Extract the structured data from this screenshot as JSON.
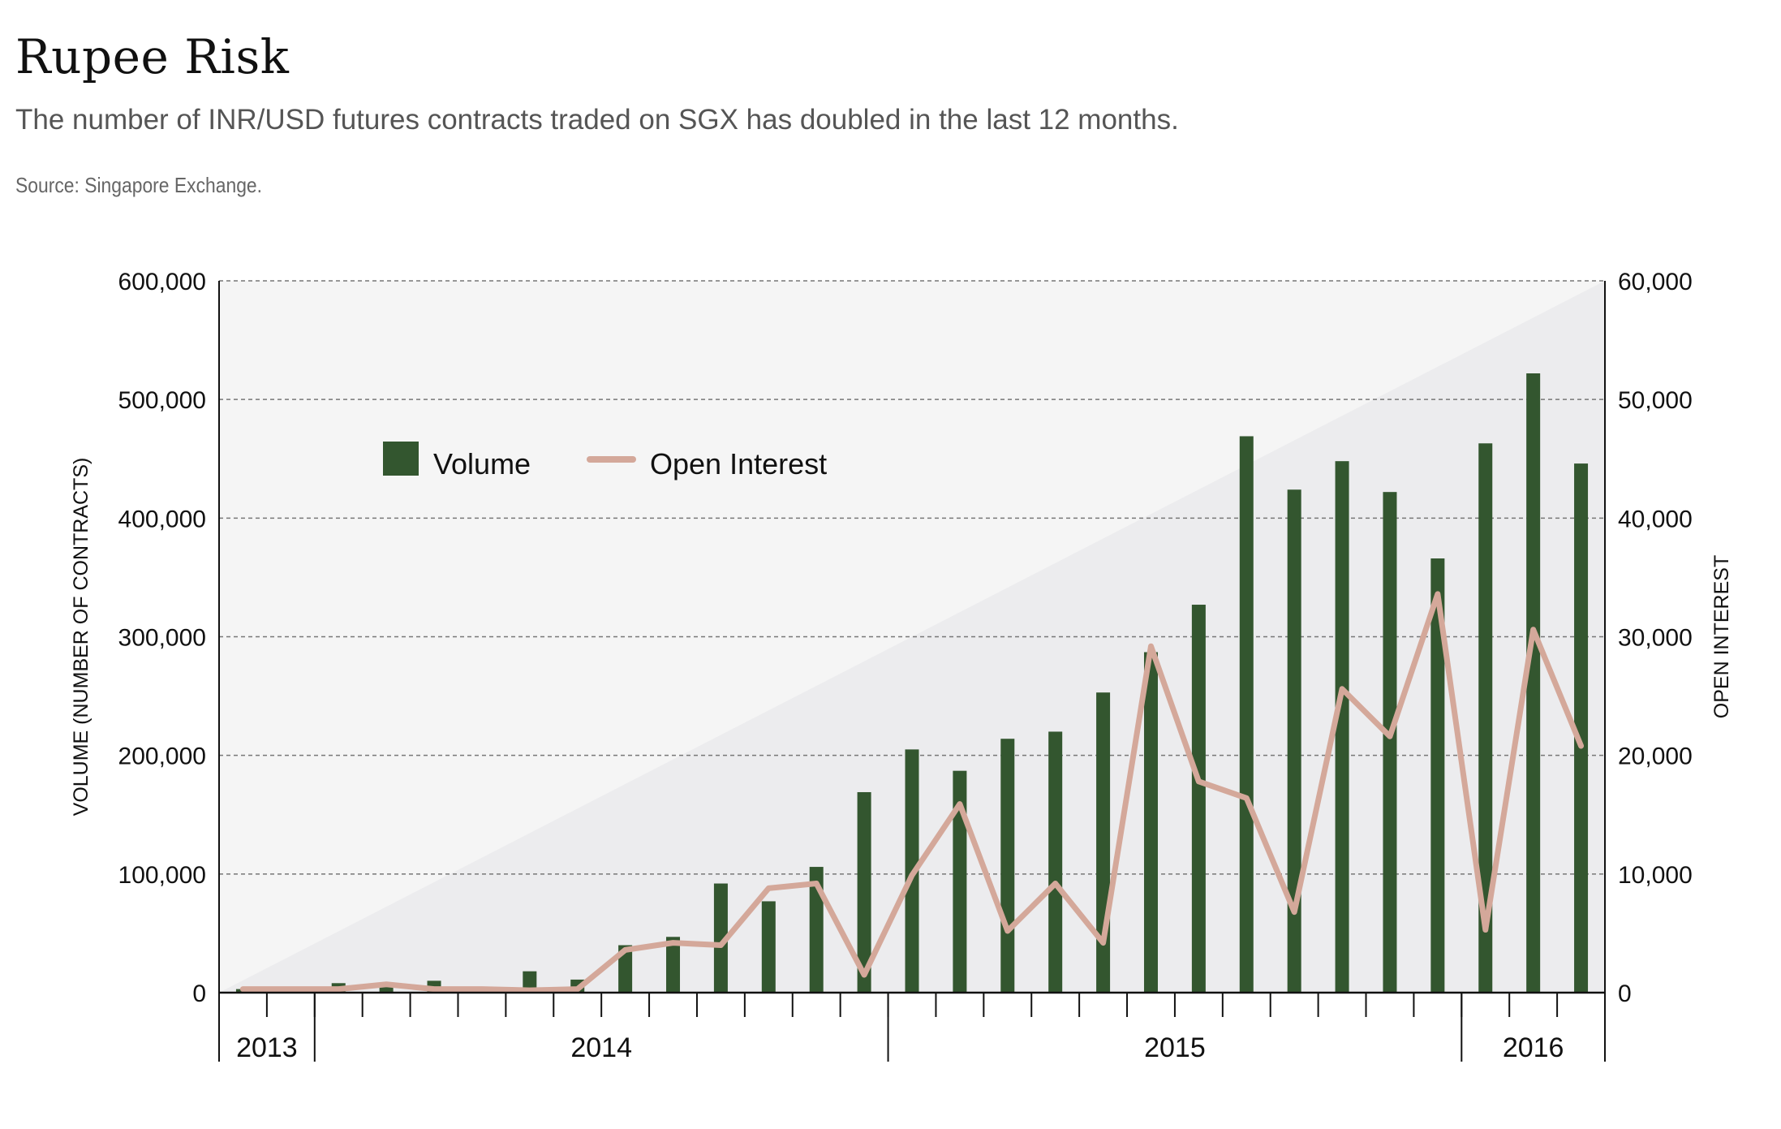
{
  "header": {
    "title": "Rupee Risk",
    "subtitle": "The number of INR/USD futures contracts traded on SGX has doubled in the last 12 months.",
    "source": "Source: Singapore Exchange."
  },
  "colors": {
    "volume_bar": "#33562f",
    "open_interest_line": "#d4a89a",
    "plot_bg": "#f5f5f5",
    "plot_triangle": "#ececee",
    "grid": "#777777"
  },
  "chart_data": {
    "type": "bar",
    "ylabel": "VOLUME (NUMBER OF CONTRACTS)",
    "y2label": "OPEN INTEREST",
    "ylim": [
      0,
      600000
    ],
    "y2lim": [
      0,
      60000
    ],
    "yticks": [
      "0",
      "100,000",
      "200,000",
      "300,000",
      "400,000",
      "500,000",
      "600,000"
    ],
    "y2ticks": [
      "0",
      "10,000",
      "20,000",
      "30,000",
      "40,000",
      "50,000",
      "60,000"
    ],
    "grid": "horizontal dashed",
    "legend": "top-left",
    "legend_items": [
      "Volume",
      "Open Interest"
    ],
    "year_labels": [
      {
        "label": "2013",
        "start": 0,
        "end": 2
      },
      {
        "label": "2014",
        "start": 2,
        "end": 14
      },
      {
        "label": "2015",
        "start": 14,
        "end": 26
      },
      {
        "label": "2016",
        "start": 26,
        "end": 29
      }
    ],
    "series": [
      {
        "name": "Volume",
        "type": "bar",
        "axis": "left",
        "values": [
          3000,
          2000,
          8000,
          5000,
          10000,
          4000,
          18000,
          11000,
          40000,
          47000,
          92000,
          77000,
          106000,
          169000,
          205000,
          187000,
          214000,
          220000,
          253000,
          287000,
          327000,
          469000,
          424000,
          448000,
          422000,
          366000,
          463000,
          522000,
          446000
        ]
      },
      {
        "name": "Open Interest",
        "type": "line",
        "axis": "right",
        "values": [
          300,
          300,
          300,
          700,
          300,
          300,
          200,
          300,
          3600,
          4200,
          4000,
          8800,
          9200,
          1500,
          9900,
          15900,
          5200,
          9200,
          4200,
          29200,
          17800,
          16400,
          6800,
          25600,
          21600,
          33600,
          5300,
          30600,
          20800
        ]
      }
    ]
  }
}
